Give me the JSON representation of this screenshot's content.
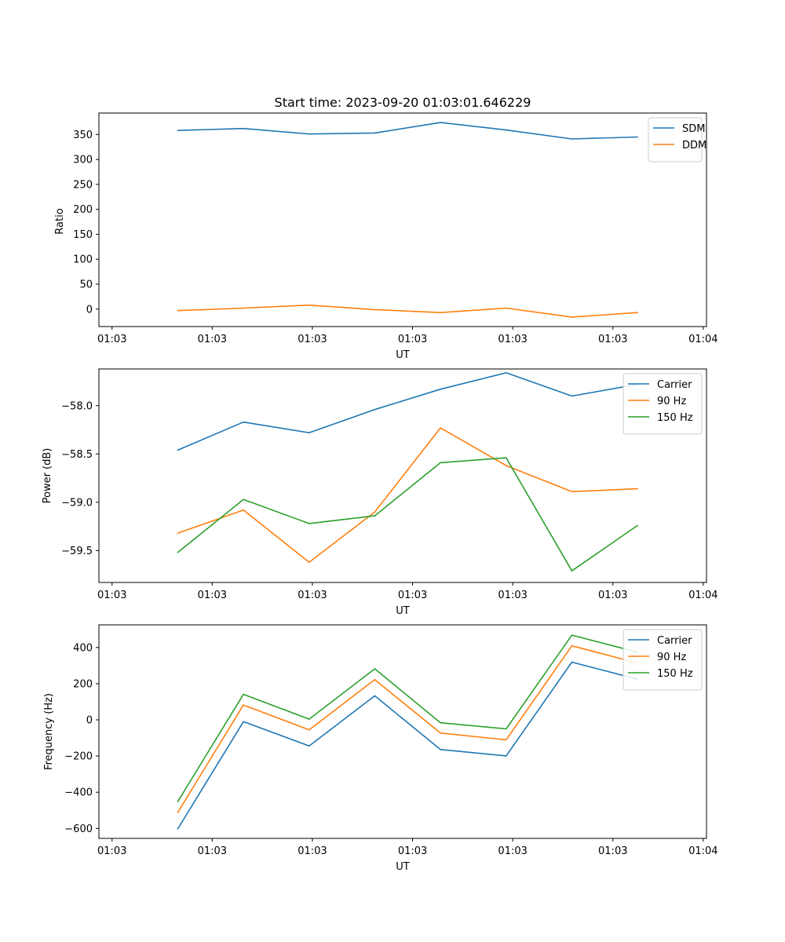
{
  "chart_data": [
    {
      "type": "line",
      "title": "Start time: 2023-09-20 01:03:01.646229",
      "xlabel": "UT",
      "ylabel": "Ratio",
      "x_tick_labels": [
        "01:03",
        "01:03",
        "01:03",
        "01:03",
        "01:03",
        "01:03",
        "01:04"
      ],
      "x": [
        1,
        2,
        3,
        4,
        5,
        6,
        7,
        8
      ],
      "xlim": [
        -0.2,
        9.05
      ],
      "ylim": [
        -35,
        393
      ],
      "y_ticks": [
        0,
        50,
        100,
        150,
        200,
        250,
        300,
        350
      ],
      "series": [
        {
          "name": "SDM",
          "color": "#1f77b4",
          "values": [
            358,
            362,
            351,
            353,
            374,
            359,
            341,
            345
          ]
        },
        {
          "name": "DDM",
          "color": "#ff7f0e",
          "values": [
            -3,
            2,
            8,
            -1,
            -7,
            2,
            -16,
            -7
          ]
        }
      ],
      "legend": "top-right"
    },
    {
      "type": "line",
      "title": "",
      "xlabel": "UT",
      "ylabel": "Power (dB)",
      "x_tick_labels": [
        "01:03",
        "01:03",
        "01:03",
        "01:03",
        "01:03",
        "01:03",
        "01:04"
      ],
      "x": [
        1,
        2,
        3,
        4,
        5,
        6,
        7,
        8
      ],
      "xlim": [
        -0.2,
        9.05
      ],
      "ylim": [
        -59.83,
        -57.62
      ],
      "y_ticks": [
        -59.5,
        -59.0,
        -58.5,
        -58.0
      ],
      "y_tick_labels": [
        "−59.5",
        "−59.0",
        "−58.5",
        "−58.0"
      ],
      "series": [
        {
          "name": "Carrier",
          "color": "#1f77b4",
          "values": [
            -58.46,
            -58.17,
            -58.28,
            -58.04,
            -57.83,
            -57.66,
            -57.9,
            -57.78
          ]
        },
        {
          "name": "90 Hz",
          "color": "#ff7f0e",
          "values": [
            -59.32,
            -59.08,
            -59.62,
            -59.1,
            -58.23,
            -58.62,
            -58.89,
            -58.86
          ]
        },
        {
          "name": "150 Hz",
          "color": "#2ca02c",
          "values": [
            -59.52,
            -58.97,
            -59.22,
            -59.14,
            -58.59,
            -58.54,
            -59.71,
            -59.24
          ]
        }
      ],
      "legend": "top-right"
    },
    {
      "type": "line",
      "title": "",
      "xlabel": "UT",
      "ylabel": "Frequency (Hz)",
      "x_tick_labels": [
        "01:03",
        "01:03",
        "01:03",
        "01:03",
        "01:03",
        "01:03",
        "01:04"
      ],
      "x": [
        1,
        2,
        3,
        4,
        5,
        6,
        7,
        8
      ],
      "xlim": [
        -0.2,
        9.05
      ],
      "ylim": [
        -655,
        525
      ],
      "y_ticks": [
        -600,
        -400,
        -200,
        0,
        200,
        400
      ],
      "y_tick_labels": [
        "−600",
        "−400",
        "−200",
        "0",
        "200",
        "400"
      ],
      "series": [
        {
          "name": "Carrier",
          "color": "#1f77b4",
          "values": [
            -603,
            -10,
            -144,
            133,
            -164,
            -199,
            319,
            225
          ]
        },
        {
          "name": "90 Hz",
          "color": "#ff7f0e",
          "values": [
            -512,
            82,
            -55,
            222,
            -73,
            -110,
            409,
            314
          ]
        },
        {
          "name": "150 Hz",
          "color": "#2ca02c",
          "values": [
            -452,
            141,
            4,
            282,
            -16,
            -50,
            468,
            374
          ]
        }
      ],
      "legend": "top-right"
    }
  ]
}
